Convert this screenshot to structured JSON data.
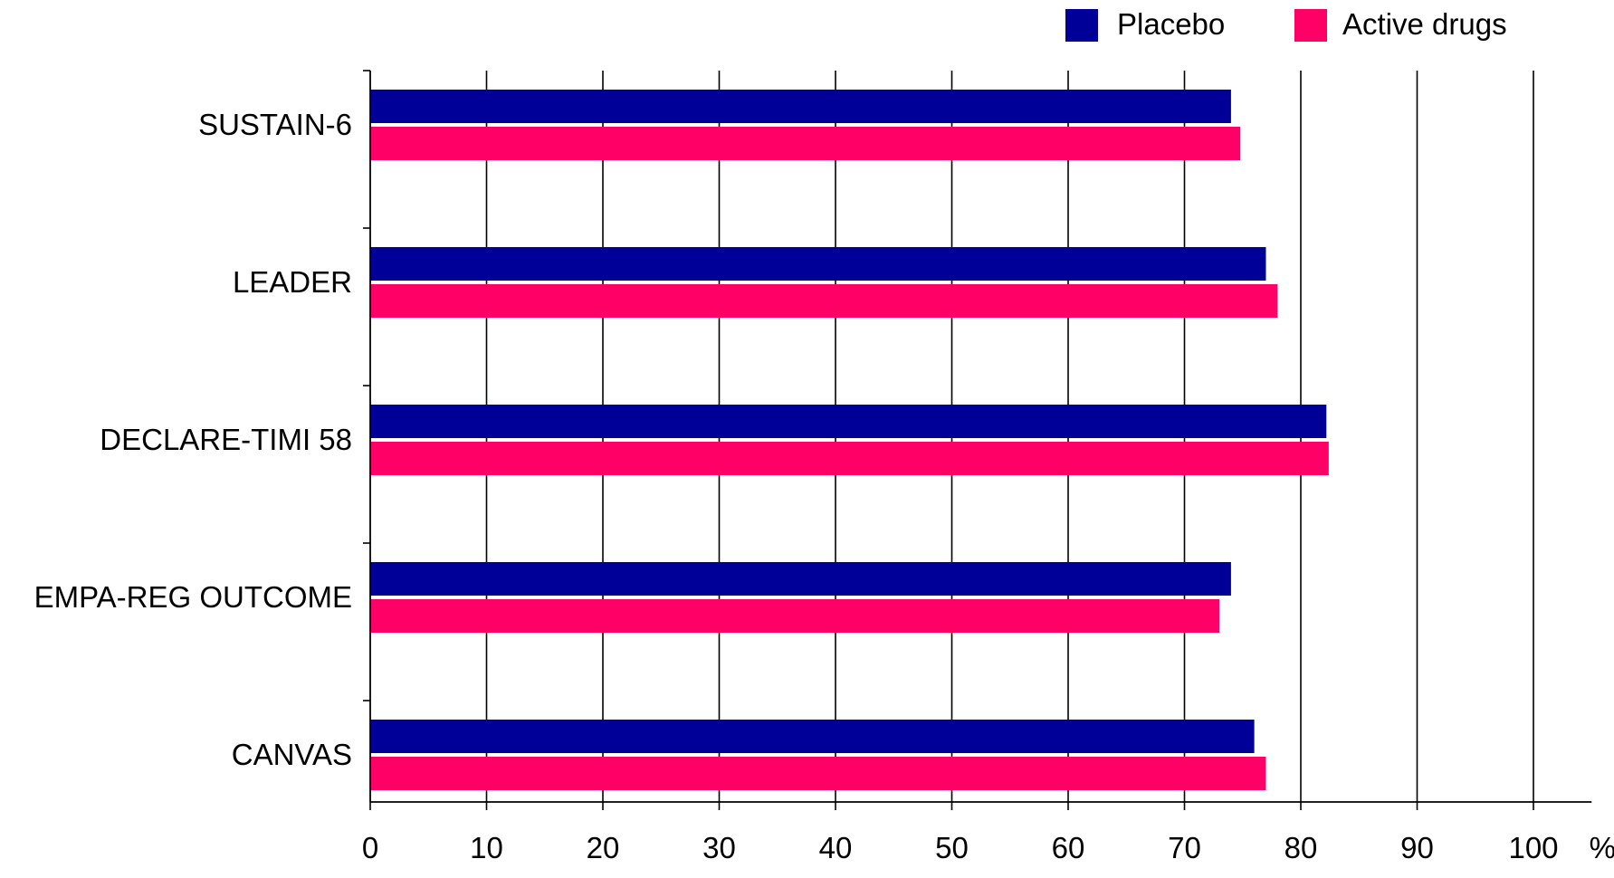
{
  "chart_data": {
    "type": "bar",
    "orientation": "horizontal",
    "categories": [
      "SUSTAIN-6",
      "LEADER",
      "DECLARE-TIMI 58",
      "EMPA-REG OUTCOME",
      "CANVAS"
    ],
    "series": [
      {
        "name": "Placebo",
        "color": "#000099",
        "values": [
          74,
          77,
          82.2,
          74,
          76
        ]
      },
      {
        "name": "Active drugs",
        "color": "#ff0066",
        "values": [
          74.8,
          78,
          82.4,
          73,
          77
        ]
      }
    ],
    "x_ticks": [
      "0",
      "10",
      "20",
      "30",
      "40",
      "50",
      "60",
      "70",
      "80",
      "90",
      "100"
    ],
    "x_unit": "%",
    "xlim": [
      0,
      105
    ],
    "grid": "vertical",
    "legend": "top-right",
    "title": "",
    "xlabel": "",
    "ylabel": ""
  }
}
